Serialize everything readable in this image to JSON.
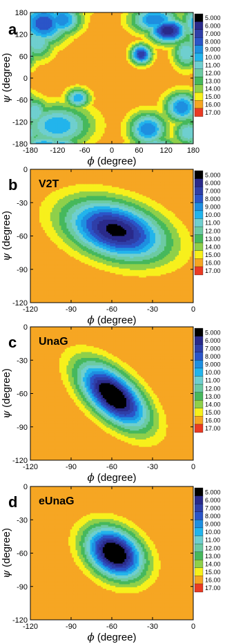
{
  "colorbar": {
    "levels": [
      "5.000",
      "6.000",
      "7.000",
      "8.000",
      "9.000",
      "10.00",
      "11.00",
      "12.00",
      "13.00",
      "14.00",
      "15.00",
      "16.00",
      "17.00"
    ],
    "colors": [
      "#000000",
      "#2a2a8a",
      "#2f3fa8",
      "#2b55c8",
      "#1e8fe0",
      "#22b4ec",
      "#6fcfcf",
      "#6ccaa3",
      "#46b85c",
      "#8fd04a",
      "#f7f01c",
      "#f6a623",
      "#ea3b24"
    ]
  },
  "chart_data": [
    {
      "type": "heatmap",
      "panel": "a",
      "title": "",
      "xlabel": {
        "symbol": "ϕ",
        "text": " (degree)"
      },
      "ylabel": {
        "symbol": "ψ",
        "text": " (degree)"
      },
      "xlim": [
        -180,
        180
      ],
      "ylim": [
        -180,
        180
      ],
      "xticks": [
        "-180",
        "-120",
        "-60",
        "0",
        "60",
        "120",
        "180"
      ],
      "yticks": [
        "-180",
        "-120",
        "-60",
        "0",
        "60",
        "120",
        "180"
      ],
      "wells": [
        {
          "x": -150,
          "y": 150,
          "sx": 28,
          "sy": 30,
          "depth": 9
        },
        {
          "x": -110,
          "y": 160,
          "sx": 22,
          "sy": 22,
          "depth": 8
        },
        {
          "x": -165,
          "y": 100,
          "sx": 20,
          "sy": 26,
          "depth": 6
        },
        {
          "x": -75,
          "y": -55,
          "sx": 14,
          "sy": 14,
          "depth": 7
        },
        {
          "x": -120,
          "y": -130,
          "sx": 40,
          "sy": 30,
          "depth": 7
        },
        {
          "x": -170,
          "y": -95,
          "sx": 16,
          "sy": 22,
          "depth": 6
        },
        {
          "x": 65,
          "y": 65,
          "sx": 12,
          "sy": 14,
          "depth": 10
        },
        {
          "x": 125,
          "y": 130,
          "sx": 22,
          "sy": 18,
          "depth": 11
        },
        {
          "x": 95,
          "y": 160,
          "sx": 28,
          "sy": 20,
          "depth": 8
        },
        {
          "x": 165,
          "y": 70,
          "sx": 16,
          "sy": 24,
          "depth": 6
        },
        {
          "x": 80,
          "y": -140,
          "sx": 22,
          "sy": 24,
          "depth": 8
        },
        {
          "x": 155,
          "y": -80,
          "sx": 20,
          "sy": 22,
          "depth": 8
        },
        {
          "x": 170,
          "y": -150,
          "sx": 18,
          "sy": 20,
          "depth": 6
        }
      ]
    },
    {
      "type": "heatmap",
      "panel": "b",
      "label": "V2T",
      "xlabel": {
        "symbol": "ϕ",
        "text": " (degree)"
      },
      "ylabel": {
        "symbol": "ψ",
        "text": " (degree)"
      },
      "xlim": [
        -120,
        0
      ],
      "ylim": [
        -120,
        0
      ],
      "xticks": [
        "-120",
        "-90",
        "-60",
        "-30",
        "0"
      ],
      "yticks": [
        "-120",
        "-90",
        "-60",
        "-30",
        "0"
      ],
      "wells": [
        {
          "x": -57,
          "y": -55,
          "sx": 19,
          "sy": 14,
          "rho": -0.35,
          "depth": 11.5
        }
      ]
    },
    {
      "type": "heatmap",
      "panel": "c",
      "label": "UnaG",
      "xlabel": {
        "symbol": "ϕ",
        "text": " (degree)"
      },
      "ylabel": {
        "symbol": "ψ",
        "text": " (degree)"
      },
      "xlim": [
        -120,
        0
      ],
      "ylim": [
        -120,
        0
      ],
      "xticks": [
        "-120",
        "-90",
        "-60",
        "-30",
        "0"
      ],
      "yticks": [
        "-120",
        "-90",
        "-60",
        "-30",
        "0"
      ],
      "wells": [
        {
          "x": -59,
          "y": -62,
          "sx": 13,
          "sy": 15,
          "rho": -0.6,
          "depth": 13
        }
      ]
    },
    {
      "type": "heatmap",
      "panel": "d",
      "label": "eUnaG",
      "xlabel": {
        "symbol": "ϕ",
        "text": " (degree)"
      },
      "ylabel": {
        "symbol": "ψ",
        "text": " (degree)"
      },
      "xlim": [
        -120,
        0
      ],
      "ylim": [
        -120,
        0
      ],
      "xticks": [
        "-120",
        "-90",
        "-60",
        "-30",
        "0"
      ],
      "yticks": [
        "-120",
        "-90",
        "-60",
        "-30",
        "0"
      ],
      "wells": [
        {
          "x": -58,
          "y": -60,
          "sx": 11,
          "sy": 12,
          "rho": -0.3,
          "depth": 13
        }
      ]
    }
  ]
}
